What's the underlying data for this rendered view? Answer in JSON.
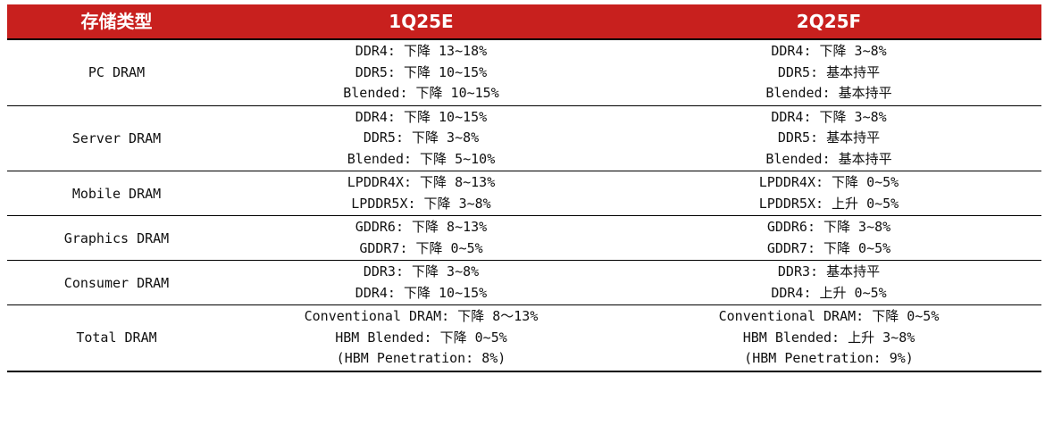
{
  "header": {
    "col1": "存储类型",
    "col2": "1Q25E",
    "col3": "2Q25F"
  },
  "rows": [
    {
      "type": "PC DRAM",
      "q1": [
        "DDR4: 下降 13~18%",
        "DDR5: 下降 10~15%",
        "Blended: 下降 10~15%"
      ],
      "q2": [
        "DDR4: 下降 3~8%",
        "DDR5: 基本持平",
        "Blended: 基本持平"
      ]
    },
    {
      "type": "Server DRAM",
      "q1": [
        "DDR4: 下降 10~15%",
        "DDR5: 下降 3~8%",
        "Blended: 下降 5~10%"
      ],
      "q2": [
        "DDR4: 下降 3~8%",
        "DDR5: 基本持平",
        "Blended: 基本持平"
      ]
    },
    {
      "type": "Mobile DRAM",
      "q1": [
        "LPDDR4X: 下降 8~13%",
        "LPDDR5X: 下降 3~8%"
      ],
      "q2": [
        "LPDDR4X: 下降 0~5%",
        "LPDDR5X: 上升 0~5%"
      ]
    },
    {
      "type": "Graphics DRAM",
      "q1": [
        "GDDR6: 下降 8~13%",
        "GDDR7: 下降 0~5%"
      ],
      "q2": [
        "GDDR6: 下降 3~8%",
        "GDDR7: 下降 0~5%"
      ]
    },
    {
      "type": "Consumer DRAM",
      "q1": [
        "DDR3: 下降 3~8%",
        "DDR4: 下降 10~15%"
      ],
      "q2": [
        "DDR3: 基本持平",
        "DDR4: 上升 0~5%"
      ]
    },
    {
      "type": "Total DRAM",
      "q1": [
        "Conventional DRAM: 下降 8～13%",
        "HBM Blended: 下降 0~5%",
        "(HBM Penetration: 8%)"
      ],
      "q2": [
        "Conventional DRAM: 下降 0~5%",
        "HBM Blended: 上升 3~8%",
        "(HBM Penetration: 9%)"
      ]
    }
  ]
}
